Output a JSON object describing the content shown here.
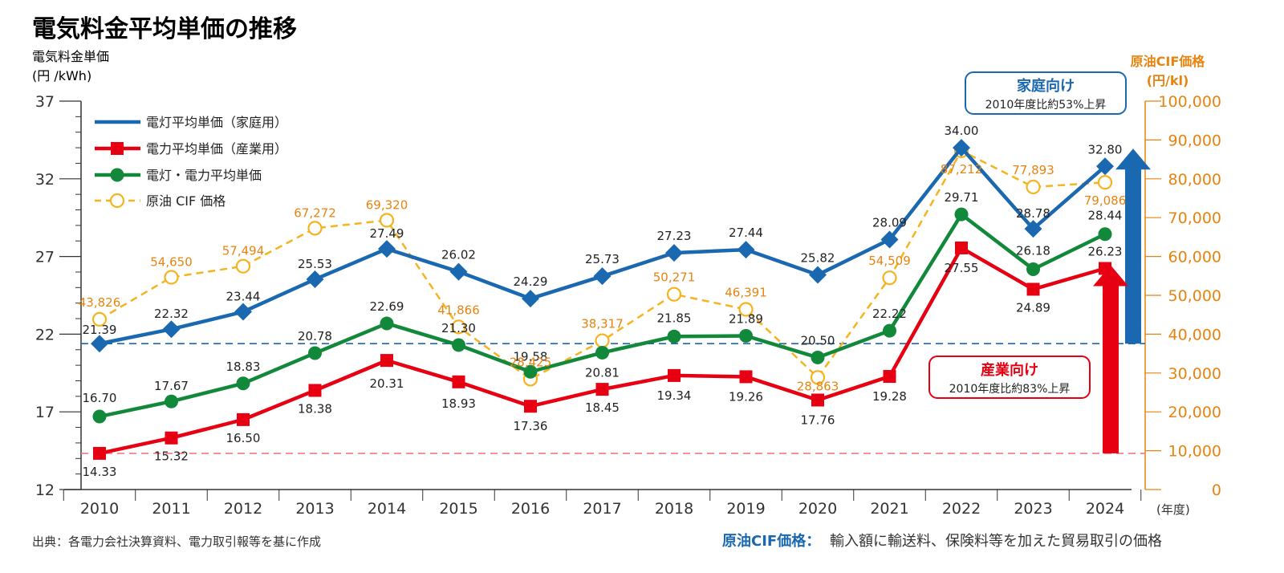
{
  "title": "電気料金平均単価の推移",
  "colors": {
    "household": "#1a68b0",
    "industrial": "#e60012",
    "combined": "#12883a",
    "oil": "#f5b320",
    "oil_label": "#e8830f"
  },
  "chart_data": {
    "type": "line",
    "title": "電気料金平均単価の推移",
    "ylabel": "電気料金単価",
    "ylabel_unit": "(円 /kWh)",
    "y2label": "原油CIF価格",
    "y2label_unit": "(円/kl)",
    "xlabel_unit": "(年度)",
    "ylim": [
      12,
      37
    ],
    "y2lim": [
      0,
      100000
    ],
    "yticks": [
      12,
      17,
      22,
      27,
      32,
      37
    ],
    "y2ticks": [
      "0",
      "10,000",
      "20,000",
      "30,000",
      "40,000",
      "50,000",
      "60,000",
      "70,000",
      "80,000",
      "90,000",
      "100,000"
    ],
    "categories": [
      "2010",
      "2011",
      "2012",
      "2013",
      "2014",
      "2015",
      "2016",
      "2017",
      "2018",
      "2019",
      "2020",
      "2021",
      "2022",
      "2023",
      "2024"
    ],
    "legend_position": "top-left",
    "series": [
      {
        "name": "電灯平均単価（家庭用）",
        "axis": "left",
        "marker": "diamond",
        "values": [
          21.39,
          22.32,
          23.44,
          25.53,
          27.49,
          26.02,
          24.29,
          25.73,
          27.23,
          27.44,
          25.82,
          28.09,
          34.0,
          28.78,
          32.8
        ],
        "labels": [
          "21.39",
          "22.32",
          "23.44",
          "25.53",
          "27.49",
          "26.02",
          "24.29",
          "25.73",
          "27.23",
          "27.44",
          "25.82",
          "28.09",
          "34.00",
          "28.78",
          "32.80"
        ]
      },
      {
        "name": "電力平均単価（産業用）",
        "axis": "left",
        "marker": "square",
        "values": [
          14.33,
          15.32,
          16.5,
          18.38,
          20.31,
          18.93,
          17.36,
          18.45,
          19.34,
          19.26,
          17.76,
          19.28,
          27.55,
          24.89,
          26.23
        ],
        "labels": [
          "14.33",
          "15.32",
          "16.50",
          "18.38",
          "20.31",
          "18.93",
          "17.36",
          "18.45",
          "19.34",
          "19.26",
          "17.76",
          "19.28",
          "27.55",
          "24.89",
          "26.23"
        ]
      },
      {
        "name": "電灯・電力平均単価",
        "axis": "left",
        "marker": "circle",
        "values": [
          16.7,
          17.67,
          18.83,
          20.78,
          22.69,
          21.3,
          19.58,
          20.81,
          21.85,
          21.89,
          20.5,
          22.22,
          29.71,
          26.18,
          28.44
        ],
        "labels": [
          "16.70",
          "17.67",
          "18.83",
          "20.78",
          "22.69",
          "21.30",
          "19.58",
          "20.81",
          "21.85",
          "21.89",
          "20.50",
          "22.22",
          "29.71",
          "26.18",
          "28.44"
        ]
      },
      {
        "name": "原油 CIF 価格",
        "axis": "right",
        "marker": "open-circle",
        "values": [
          43826,
          54650,
          57494,
          67272,
          69320,
          41866,
          28425,
          38317,
          50271,
          46391,
          28863,
          54509,
          87212,
          77893,
          79086
        ],
        "labels": [
          "43,826",
          "54,650",
          "57,494",
          "67,272",
          "69,320",
          "41,866",
          "28,425",
          "38,317",
          "50,271",
          "46,391",
          "28,863",
          "54,509",
          "87,212",
          "77,893",
          "79,086"
        ]
      }
    ],
    "reference_lines": [
      {
        "series": "household",
        "value": 21.39
      },
      {
        "series": "industrial",
        "value": 14.33
      }
    ],
    "annotations": [
      {
        "id": "household",
        "title": "家庭向け",
        "text": "2010年度比約53%上昇"
      },
      {
        "id": "industrial",
        "title": "産業向け",
        "text": "2010年度比約83%上昇"
      }
    ]
  },
  "footer": {
    "source": "出典：各電力会社決算資料、電力取引報等を基に作成",
    "definition_term": "原油CIF価格：",
    "definition_text": "輸入額に輸送料、保険料等を加えた貿易取引の価格"
  }
}
